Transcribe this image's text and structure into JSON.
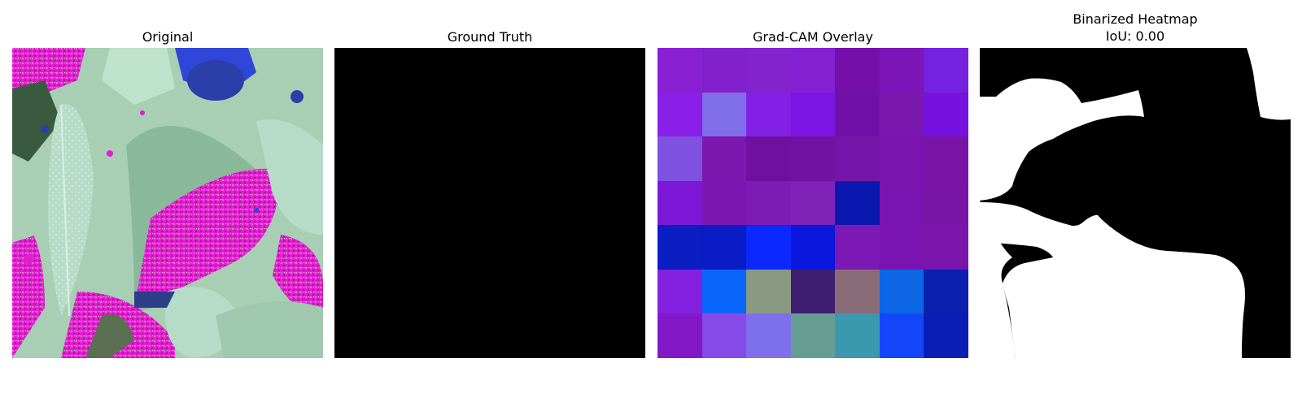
{
  "panels": [
    {
      "title": "Original"
    },
    {
      "title": "Ground Truth"
    },
    {
      "title": "Grad-CAM Overlay"
    },
    {
      "title_line1": "Binarized Heatmap",
      "title_line2": "IoU: 0.00"
    }
  ],
  "gradcam_cells": [
    [
      "#8a20d4",
      "#8220cc",
      "#8322cf",
      "#8420d2",
      "#740fa9",
      "#7d16b8",
      "#7620e0"
    ],
    [
      "#8a20e8",
      "#7f6ee8",
      "#8320e6",
      "#7a15e4",
      "#7110a8",
      "#7b18b0",
      "#7512e0"
    ],
    [
      "#8050e0",
      "#7a18b0",
      "#7010a0",
      "#7212a2",
      "#7514a8",
      "#7a14ae",
      "#7a14a8"
    ],
    [
      "#7e18d8",
      "#7c18b2",
      "#7c1cb4",
      "#7e22b8",
      "#0b18b0",
      "#7a14b0",
      "#7814a8"
    ],
    [
      "#0a1ec4",
      "#0a1cc6",
      "#0b28ff",
      "#0a18de",
      "#7c18b4",
      "#7a14b0",
      "#7a14ac"
    ],
    [
      "#8420e0",
      "#0866fa",
      "#8a9a80",
      "#401e70",
      "#8a6c78",
      "#0c66e6",
      "#0a20ae"
    ],
    [
      "#8218c8",
      "#864ae8",
      "#7e70ec",
      "#669e94",
      "#3c98ae",
      "#1446fa",
      "#0a1eb4"
    ]
  ],
  "colors": {
    "background": "#ffffff",
    "mask_black": "#000000",
    "mask_white": "#ffffff"
  }
}
